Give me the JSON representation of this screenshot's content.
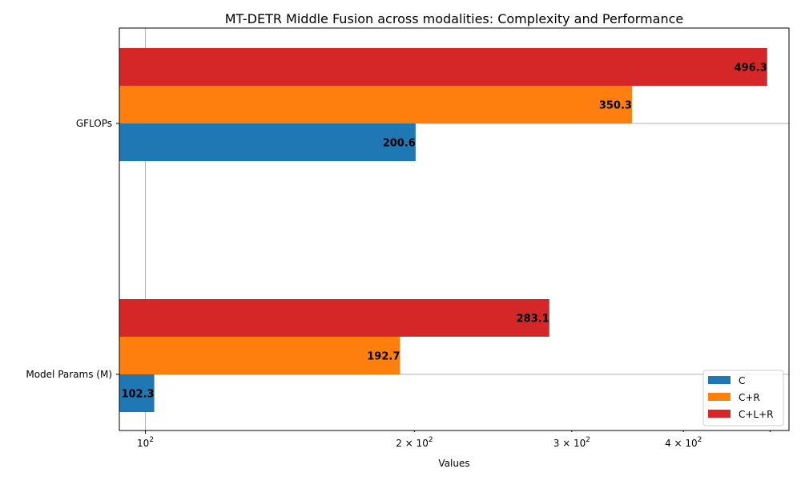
{
  "chart_data": {
    "type": "bar",
    "orientation": "horizontal",
    "title": "MT-DETR Middle Fusion across modalities: Complexity and Performance",
    "xlabel": "Values",
    "ylabel": "",
    "xscale": "log",
    "xlim": [
      93.5,
      525
    ],
    "categories": [
      "Model Params (M)",
      "GFLOPs"
    ],
    "series": [
      {
        "name": "C",
        "color": "#1f77b4",
        "values": [
          102.3,
          200.6
        ],
        "labels": [
          "102.3",
          "200.6"
        ]
      },
      {
        "name": "C+R",
        "color": "#ff7f0e",
        "values": [
          192.7,
          350.3
        ],
        "labels": [
          "192.7",
          "350.3"
        ]
      },
      {
        "name": "C+L+R",
        "color": "#d62728",
        "values": [
          283.1,
          496.3
        ],
        "labels": [
          "283.1",
          "496.3"
        ]
      }
    ],
    "x_ticks": [
      {
        "value": 100,
        "base": "10",
        "exp": "2"
      },
      {
        "value": 200,
        "base": "2 × 10",
        "exp": "2"
      },
      {
        "value": 300,
        "base": "3 × 10",
        "exp": "2"
      },
      {
        "value": 400,
        "base": "4 × 10",
        "exp": "2"
      }
    ],
    "grid": true,
    "legend_position": "lower right"
  }
}
